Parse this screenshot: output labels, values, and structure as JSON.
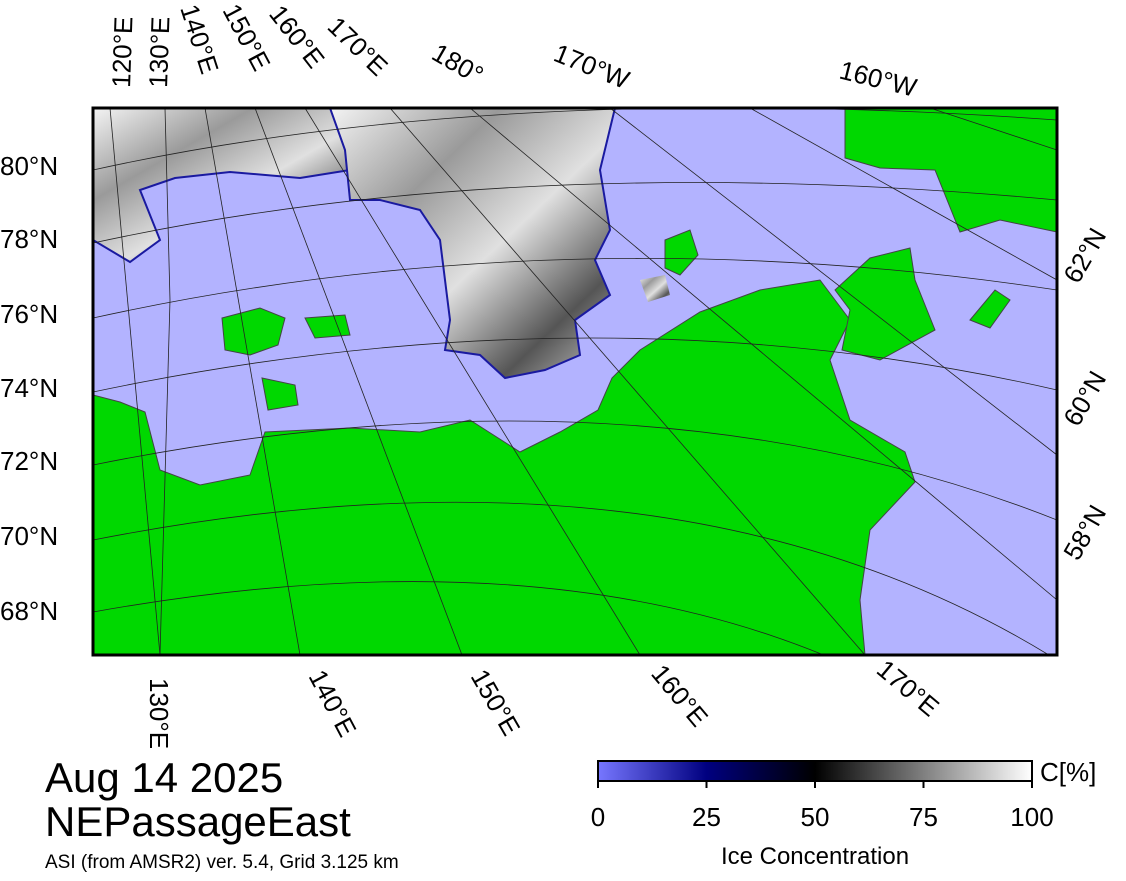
{
  "title": {
    "date": "Aug 14 2025",
    "region": "NEPassageEast",
    "source": "ASI (from AMSR2) ver. 5.4,  Grid 3.125 km"
  },
  "map": {
    "top_labels": [
      "120°E",
      "130°E",
      "140°E",
      "150°E",
      "160°E",
      "170°E",
      "180°",
      "170°W",
      "160°W"
    ],
    "left_labels": [
      "80°N",
      "78°N",
      "76°N",
      "74°N",
      "72°N",
      "70°N",
      "68°N"
    ],
    "right_labels": [
      "62°N",
      "60°N",
      "58°N"
    ],
    "bottom_labels": [
      "130°E",
      "140°E",
      "150°E",
      "160°E",
      "170°E"
    ]
  },
  "colorbar": {
    "label": "Ice Concentration",
    "unit": "C[%]",
    "lim": [
      0,
      100
    ],
    "ticks": [
      0,
      25,
      50,
      75,
      100
    ]
  }
}
